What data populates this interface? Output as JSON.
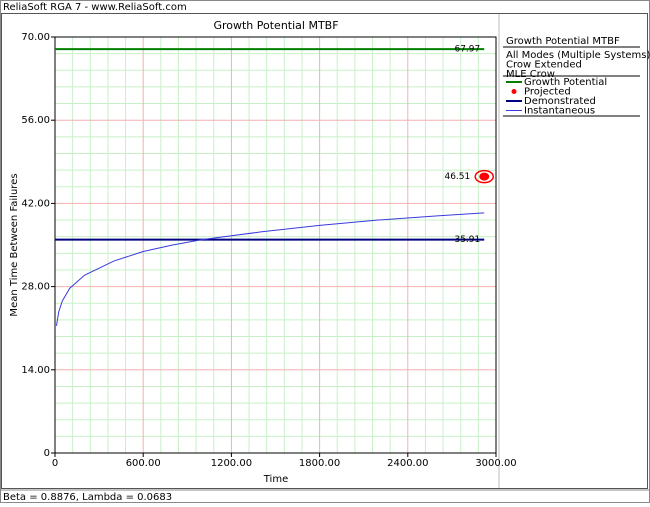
{
  "window_title": "ReliaSoft RGA 7 - www.ReliaSoft.com",
  "footer": "Beta = 0.8876, Lambda = 0.0683",
  "chart_data": {
    "type": "line",
    "title": "Growth Potential MTBF",
    "xlabel": "Time",
    "ylabel": "Mean Time Between Failures",
    "xlim": [
      0,
      3000
    ],
    "ylim": [
      0,
      70
    ],
    "xticks": [
      0,
      {
        "value": 600,
        "label": "600.00"
      },
      {
        "value": 1200,
        "label": "1200.00"
      },
      {
        "value": 1800,
        "label": "1800.00"
      },
      {
        "value": 2400,
        "label": "2400.00"
      },
      {
        "value": 3000,
        "label": "3000.00"
      }
    ],
    "yticks": [
      0,
      {
        "value": 14,
        "label": "14.00"
      },
      {
        "value": 28,
        "label": "28.00"
      },
      {
        "value": 42,
        "label": "42.00"
      },
      {
        "value": 56,
        "label": "56.00"
      },
      {
        "value": 70,
        "label": "70.00"
      }
    ],
    "grid": true,
    "minor_grid": true,
    "legend_title": "Growth Potential MTBF",
    "legend_info": [
      "All Modes (Multiple Systems)",
      "Crow Extended",
      "MLE Crow"
    ],
    "series": [
      {
        "name": "Growth Potential",
        "color": "#008000",
        "kind": "hline",
        "value": 67.97,
        "x_end": 2920,
        "value_label": "67.97"
      },
      {
        "name": "Projected",
        "color": "#ff0000",
        "kind": "point",
        "x": 2920,
        "value": 46.51,
        "value_label": "46.51"
      },
      {
        "name": "Demonstrated",
        "color": "#000080",
        "kind": "hline",
        "value": 35.91,
        "x_end": 2920,
        "value_label": "35.91"
      },
      {
        "name": "Instantaneous",
        "color": "#3a3ae0",
        "kind": "curve",
        "x": [
          10,
          25,
          50,
          100,
          200,
          400,
          600,
          800,
          1000,
          1400,
          1800,
          2200,
          2600,
          2920
        ],
        "values": [
          21.4,
          23.7,
          25.6,
          27.7,
          29.9,
          32.3,
          33.9,
          35.0,
          35.9,
          37.2,
          38.3,
          39.2,
          39.9,
          40.4
        ]
      }
    ]
  }
}
